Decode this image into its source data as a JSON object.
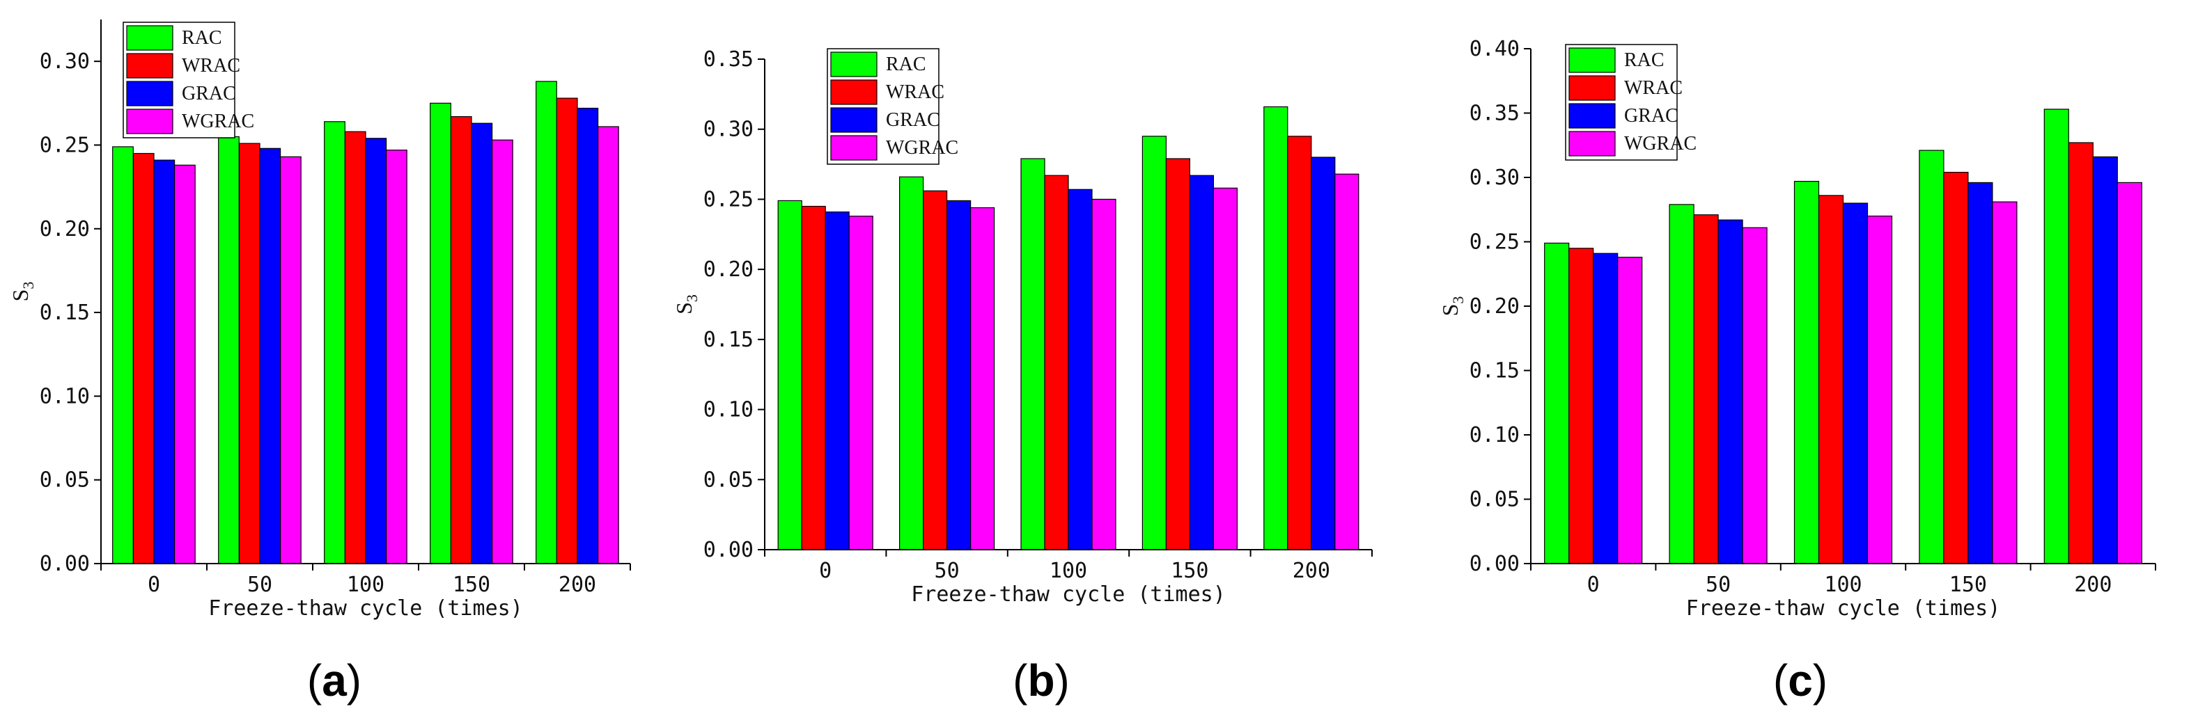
{
  "figure": {
    "colors": {
      "RAC": "#00ff00",
      "WRAC": "#ff0000",
      "GRAC": "#0000ff",
      "WGRAC": "#ff00ff"
    }
  },
  "chart_data": [
    {
      "type": "bar",
      "panel_label": "a",
      "categories": [
        "0",
        "50",
        "100",
        "150",
        "200"
      ],
      "series": [
        {
          "name": "RAC",
          "values": [
            0.249,
            0.255,
            0.264,
            0.275,
            0.288
          ]
        },
        {
          "name": "WRAC",
          "values": [
            0.245,
            0.251,
            0.258,
            0.267,
            0.278
          ]
        },
        {
          "name": "GRAC",
          "values": [
            0.241,
            0.248,
            0.254,
            0.263,
            0.272
          ]
        },
        {
          "name": "WGRAC",
          "values": [
            0.238,
            0.243,
            0.247,
            0.253,
            0.261
          ]
        }
      ],
      "xlabel": "Freeze-thaw cycle (times)",
      "ylabel": "S3",
      "ylabel_main": "S",
      "ylabel_sub": "3",
      "ylim": [
        0,
        0.325
      ],
      "yticks": [
        "0.00",
        "0.05",
        "0.10",
        "0.15",
        "0.20",
        "0.25",
        "0.30"
      ],
      "legend": [
        "RAC",
        "WRAC",
        "GRAC",
        "WGRAC"
      ]
    },
    {
      "type": "bar",
      "panel_label": "b",
      "categories": [
        "0",
        "50",
        "100",
        "150",
        "200"
      ],
      "series": [
        {
          "name": "RAC",
          "values": [
            0.249,
            0.266,
            0.279,
            0.295,
            0.316
          ]
        },
        {
          "name": "WRAC",
          "values": [
            0.245,
            0.256,
            0.267,
            0.279,
            0.295
          ]
        },
        {
          "name": "GRAC",
          "values": [
            0.241,
            0.249,
            0.257,
            0.267,
            0.28
          ]
        },
        {
          "name": "WGRAC",
          "values": [
            0.238,
            0.244,
            0.25,
            0.258,
            0.268
          ]
        }
      ],
      "xlabel": "Freeze-thaw cycle (times)",
      "ylabel": "S3",
      "ylabel_main": "S",
      "ylabel_sub": "3",
      "ylim": [
        0,
        0.35
      ],
      "yticks": [
        "0.00",
        "0.05",
        "0.10",
        "0.15",
        "0.20",
        "0.25",
        "0.30",
        "0.35"
      ],
      "legend": [
        "RAC",
        "WRAC",
        "GRAC",
        "WGRAC"
      ]
    },
    {
      "type": "bar",
      "panel_label": "c",
      "categories": [
        "0",
        "50",
        "100",
        "150",
        "200"
      ],
      "series": [
        {
          "name": "RAC",
          "values": [
            0.249,
            0.279,
            0.297,
            0.321,
            0.353
          ]
        },
        {
          "name": "WRAC",
          "values": [
            0.245,
            0.271,
            0.286,
            0.304,
            0.327
          ]
        },
        {
          "name": "GRAC",
          "values": [
            0.241,
            0.267,
            0.28,
            0.296,
            0.316
          ]
        },
        {
          "name": "WGRAC",
          "values": [
            0.238,
            0.261,
            0.27,
            0.281,
            0.296
          ]
        }
      ],
      "xlabel": "Freeze-thaw cycle (times)",
      "ylabel": "S3",
      "ylabel_main": "S",
      "ylabel_sub": "3",
      "ylim": [
        0,
        0.4
      ],
      "yticks": [
        "0.00",
        "0.05",
        "0.10",
        "0.15",
        "0.20",
        "0.25",
        "0.30",
        "0.35",
        "0.40"
      ],
      "legend": [
        "RAC",
        "WRAC",
        "GRAC",
        "WGRAC"
      ]
    }
  ]
}
